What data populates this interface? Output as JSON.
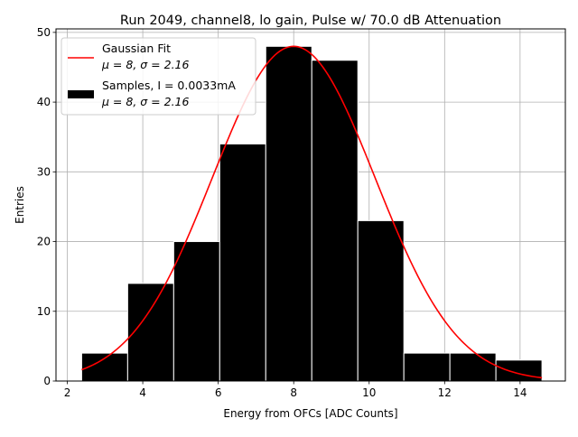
{
  "chart_data": {
    "type": "bar",
    "title": "Run 2049, channel8, lo gain, Pulse w/ 70.0 dB Attenuation",
    "xlabel": "Energy from OFCs [ADC Counts]",
    "ylabel": "Entries",
    "xlim": [
      1.7,
      15.2
    ],
    "ylim": [
      0,
      50.5
    ],
    "xticks": [
      2,
      4,
      6,
      8,
      10,
      12,
      14
    ],
    "yticks": [
      0,
      10,
      20,
      30,
      40,
      50
    ],
    "grid": true,
    "legend_position": "top-left",
    "histogram": {
      "name": "Samples, I = 0.0033mA",
      "stats": "μ = 8, σ = 2.16",
      "color": "#000000",
      "bins": [
        {
          "x0": 2.38,
          "x1": 3.6,
          "count": 4
        },
        {
          "x0": 3.6,
          "x1": 4.82,
          "count": 14
        },
        {
          "x0": 4.82,
          "x1": 6.04,
          "count": 20
        },
        {
          "x0": 6.04,
          "x1": 7.26,
          "count": 34
        },
        {
          "x0": 7.26,
          "x1": 8.48,
          "count": 48
        },
        {
          "x0": 8.48,
          "x1": 9.7,
          "count": 46
        },
        {
          "x0": 9.7,
          "x1": 10.92,
          "count": 23
        },
        {
          "x0": 10.92,
          "x1": 12.14,
          "count": 4
        },
        {
          "x0": 12.14,
          "x1": 13.36,
          "count": 4
        },
        {
          "x0": 13.36,
          "x1": 14.58,
          "count": 3
        }
      ]
    },
    "fit": {
      "name": "Gaussian Fit",
      "stats": "μ = 8, σ = 2.16",
      "mu": 8,
      "sigma": 2.16,
      "amplitude": 48,
      "x_range": [
        2.38,
        14.58
      ],
      "color": "#ff0000"
    }
  }
}
